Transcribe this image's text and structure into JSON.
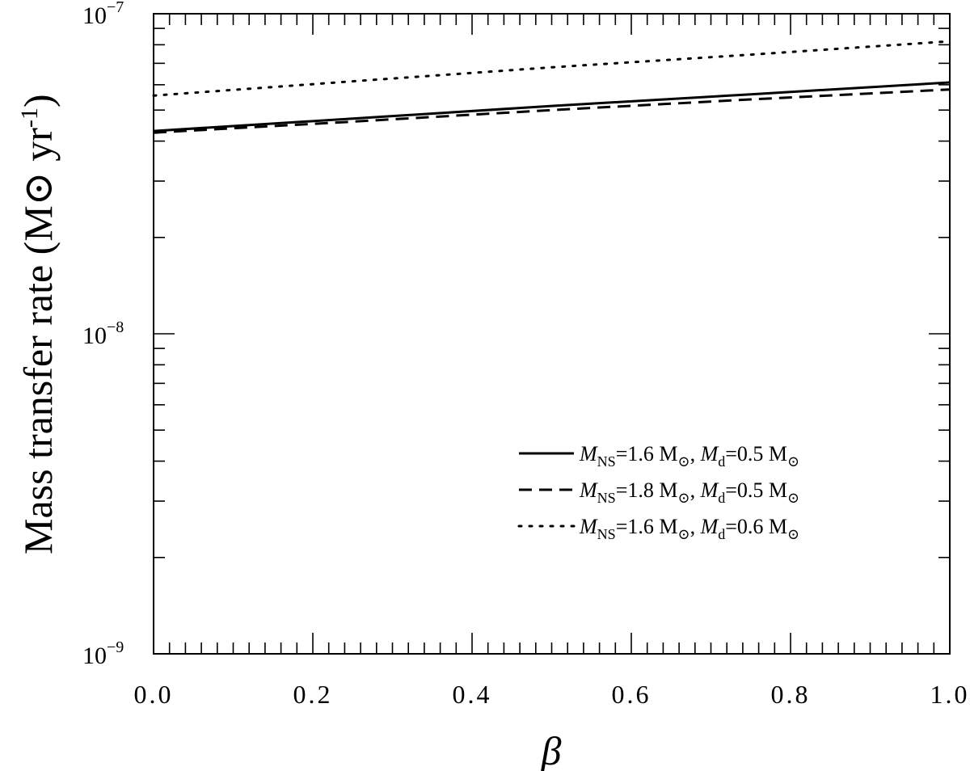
{
  "chart_data": {
    "type": "line",
    "xlabel": "β",
    "ylabel_parts": [
      "Mass transfer rate (M",
      "⊙",
      "  yr",
      "-1",
      ")"
    ],
    "xlim": [
      0.0,
      1.0
    ],
    "ylim": [
      1e-09,
      1e-07
    ],
    "yscale": "log",
    "x_ticks": [
      "0.0",
      "0.2",
      "0.4",
      "0.6",
      "0.8",
      "1.0"
    ],
    "y_ticks": [
      {
        "value": 1e-09,
        "base": "10",
        "exp": "−9"
      },
      {
        "value": 1e-08,
        "base": "10",
        "exp": "−8"
      },
      {
        "value": 1e-07,
        "base": "10",
        "exp": "−7"
      }
    ],
    "grid": false,
    "legend_position": "lower-right",
    "series": [
      {
        "label_parts": [
          "M",
          "NS",
          "=1.6 M",
          "⊙",
          ", ",
          "M",
          "d",
          "=0.5 M",
          "⊙"
        ],
        "style": "solid",
        "x": [
          0.0,
          0.25,
          0.5,
          0.75,
          1.0
        ],
        "y": [
          4.3e-08,
          4.7e-08,
          5.15e-08,
          5.6e-08,
          6.1e-08
        ]
      },
      {
        "label_parts": [
          "M",
          "NS",
          "=1.8 M",
          "⊙",
          ", ",
          "M",
          "d",
          "=0.5 M",
          "⊙"
        ],
        "style": "dashed",
        "x": [
          0.0,
          0.25,
          0.5,
          0.75,
          1.0
        ],
        "y": [
          4.25e-08,
          4.6e-08,
          5e-08,
          5.4e-08,
          5.8e-08
        ]
      },
      {
        "label_parts": [
          "M",
          "NS",
          "=1.6 M",
          "⊙",
          ", ",
          "M",
          "d",
          "=0.6 M",
          "⊙"
        ],
        "style": "dotted",
        "x": [
          0.0,
          0.25,
          0.5,
          0.75,
          1.0
        ],
        "y": [
          5.55e-08,
          6.15e-08,
          6.8e-08,
          7.45e-08,
          8.2e-08
        ]
      }
    ]
  }
}
